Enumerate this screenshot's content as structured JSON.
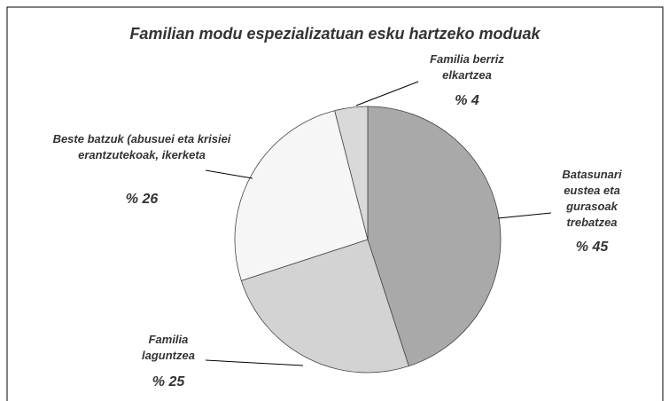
{
  "chart_data": {
    "type": "pie",
    "title": "Familian modu espezializatuan esku hartzeko moduak",
    "categories": [
      "Batasunari eustea eta gurasoak trebatzea",
      "Familia laguntzea",
      "Beste batzuk (abusuei eta krisiei erantzutekoak, ikerketa",
      "Familia berriz elkartzea"
    ],
    "values": [
      45,
      25,
      26,
      4
    ],
    "value_labels": [
      "% 45",
      "% 25",
      "% 26",
      "% 4"
    ],
    "colors": [
      "#a9a9a9",
      "#d3d3d3",
      "#f6f6f6",
      "#d9d9d9"
    ]
  }
}
